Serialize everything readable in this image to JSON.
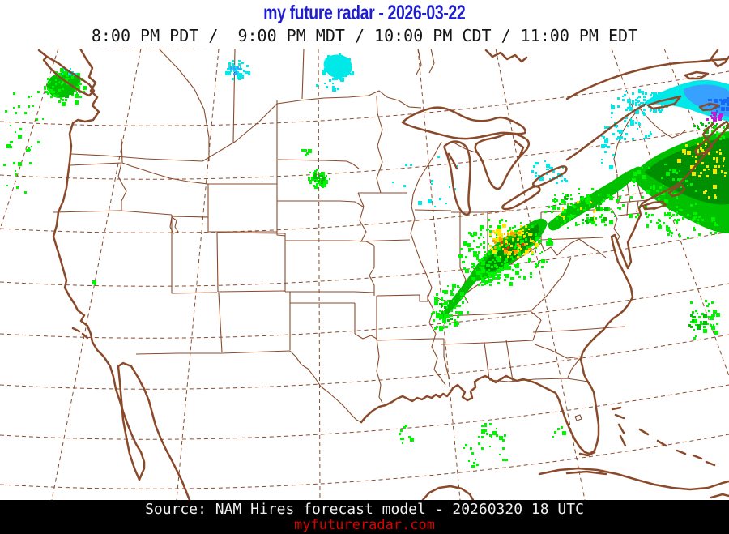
{
  "header": {
    "title": "my future radar - 2026-03-22",
    "title_color": "#1e1ecf",
    "times": "8:00 PM PDT /  9:00 PM MDT / 10:00 PM CDT / 11:00 PM EDT"
  },
  "footer": {
    "source": "Source: NAM Hires forecast model - 20260320 18 UTC",
    "website": "myfutureradar.com",
    "website_color": "#dd0000"
  },
  "map": {
    "line_color": "#8a4a2a",
    "background": "#ffffff",
    "palette": {
      "brightGreen": "#00f400",
      "midGreen": "#00c000",
      "darkGreen": "#008f00",
      "yellow": "#ffe400",
      "orange": "#ffa000",
      "red": "#ff3000",
      "cyan": "#00e8e8",
      "blue": "#38a0ff",
      "deepBlue": "#1868f8",
      "purple": "#c818d8"
    },
    "clusters": [
      {
        "region": "pacific-northwest-rain",
        "items": [
          [
            78,
            105,
            26,
            22,
            70,
            "brightGreen",
            1
          ],
          [
            78,
            105,
            14,
            12,
            20,
            "midGreen",
            2
          ],
          [
            84,
            88,
            10,
            5,
            10,
            "cyan",
            3
          ],
          [
            30,
            142,
            26,
            45,
            20,
            "brightGreen",
            4
          ],
          [
            18,
            205,
            20,
            48,
            16,
            "brightGreen",
            5
          ],
          [
            116,
            348,
            3,
            3,
            3,
            "brightGreen",
            6
          ]
        ]
      },
      {
        "region": "british-columbia-snow",
        "items": [
          [
            292,
            85,
            15,
            13,
            40,
            "cyan",
            8
          ],
          [
            290,
            83,
            8,
            7,
            10,
            "blue",
            9
          ]
        ]
      },
      {
        "region": "saskatchewan-snow",
        "items": [
          [
            414,
            83,
            22,
            17,
            45,
            "cyan",
            10
          ],
          [
            412,
            100,
            26,
            12,
            14,
            "cyan",
            11
          ],
          [
            376,
            186,
            5,
            4,
            7,
            "brightGreen",
            7
          ]
        ]
      },
      {
        "region": "south-dakota-rain",
        "items": [
          [
            393,
            219,
            13,
            12,
            55,
            "brightGreen",
            12
          ],
          [
            393,
            218,
            8,
            7,
            15,
            "midGreen",
            13
          ]
        ]
      },
      {
        "region": "upper-midwest-flurries",
        "items": [
          [
            525,
            205,
            45,
            55,
            16,
            "cyan",
            14
          ],
          [
            675,
            208,
            20,
            12,
            22,
            "cyan",
            15
          ],
          [
            692,
            220,
            10,
            8,
            8,
            "cyan",
            16
          ],
          [
            748,
            186,
            12,
            20,
            10,
            "cyan",
            47
          ]
        ]
      },
      {
        "region": "ohio-valley-rain",
        "items": [
          [
            622,
            308,
            58,
            40,
            170,
            "brightGreen",
            18
          ],
          [
            630,
            297,
            32,
            22,
            70,
            "yellow",
            19
          ],
          [
            633,
            298,
            26,
            15,
            28,
            "orange",
            20
          ],
          [
            630,
            300,
            20,
            10,
            6,
            "red",
            21
          ],
          [
            600,
            330,
            30,
            22,
            60,
            "brightGreen",
            22
          ],
          [
            556,
            375,
            22,
            26,
            55,
            "brightGreen",
            23
          ],
          [
            550,
            382,
            12,
            14,
            14,
            "midGreen",
            24
          ],
          [
            540,
            395,
            10,
            16,
            16,
            "brightGreen",
            25
          ]
        ]
      },
      {
        "region": "northeast-rain-band",
        "items": [
          [
            720,
            258,
            48,
            26,
            90,
            "brightGreen",
            26
          ],
          [
            712,
            260,
            30,
            14,
            12,
            "yellow",
            27
          ],
          [
            722,
            256,
            40,
            20,
            30,
            "midGreen",
            28
          ]
        ]
      },
      {
        "region": "atlantic-offshore-rain",
        "items": [
          [
            810,
            240,
            50,
            40,
            80,
            "brightGreen",
            29
          ],
          [
            865,
            195,
            30,
            25,
            40,
            "yellow",
            30
          ],
          [
            880,
            225,
            18,
            22,
            14,
            "yellow",
            31
          ],
          [
            850,
            275,
            40,
            18,
            40,
            "brightGreen",
            32
          ],
          [
            876,
            154,
            22,
            7,
            24,
            "midGreen",
            39
          ],
          [
            888,
            162,
            12,
            8,
            14,
            "brightGreen",
            40
          ]
        ]
      },
      {
        "region": "new-england-snow",
        "items": [
          [
            800,
            124,
            26,
            16,
            60,
            "cyan",
            33
          ],
          [
            770,
            135,
            20,
            26,
            30,
            "cyan",
            34
          ],
          [
            780,
            160,
            24,
            18,
            20,
            "cyan",
            35
          ],
          [
            752,
            168,
            12,
            16,
            10,
            "cyan",
            36
          ],
          [
            884,
            126,
            16,
            12,
            24,
            "deepBlue",
            37
          ],
          [
            876,
            141,
            14,
            5,
            12,
            "purple",
            38
          ]
        ]
      },
      {
        "region": "gulf-of-mexico-showers",
        "items": [
          [
            500,
            536,
            9,
            12,
            10,
            "brightGreen",
            41
          ],
          [
            583,
            560,
            14,
            16,
            14,
            "brightGreen",
            42
          ],
          [
            602,
            535,
            14,
            16,
            14,
            "brightGreen",
            48
          ],
          [
            620,
            545,
            10,
            24,
            8,
            "brightGreen",
            43
          ],
          [
            688,
            532,
            10,
            10,
            5,
            "brightGreen",
            44
          ]
        ]
      },
      {
        "region": "atlantic-edge-showers",
        "items": [
          [
            866,
            392,
            22,
            28,
            40,
            "brightGreen",
            45
          ],
          [
            860,
            398,
            12,
            14,
            10,
            "midGreen",
            46
          ]
        ]
      }
    ]
  }
}
